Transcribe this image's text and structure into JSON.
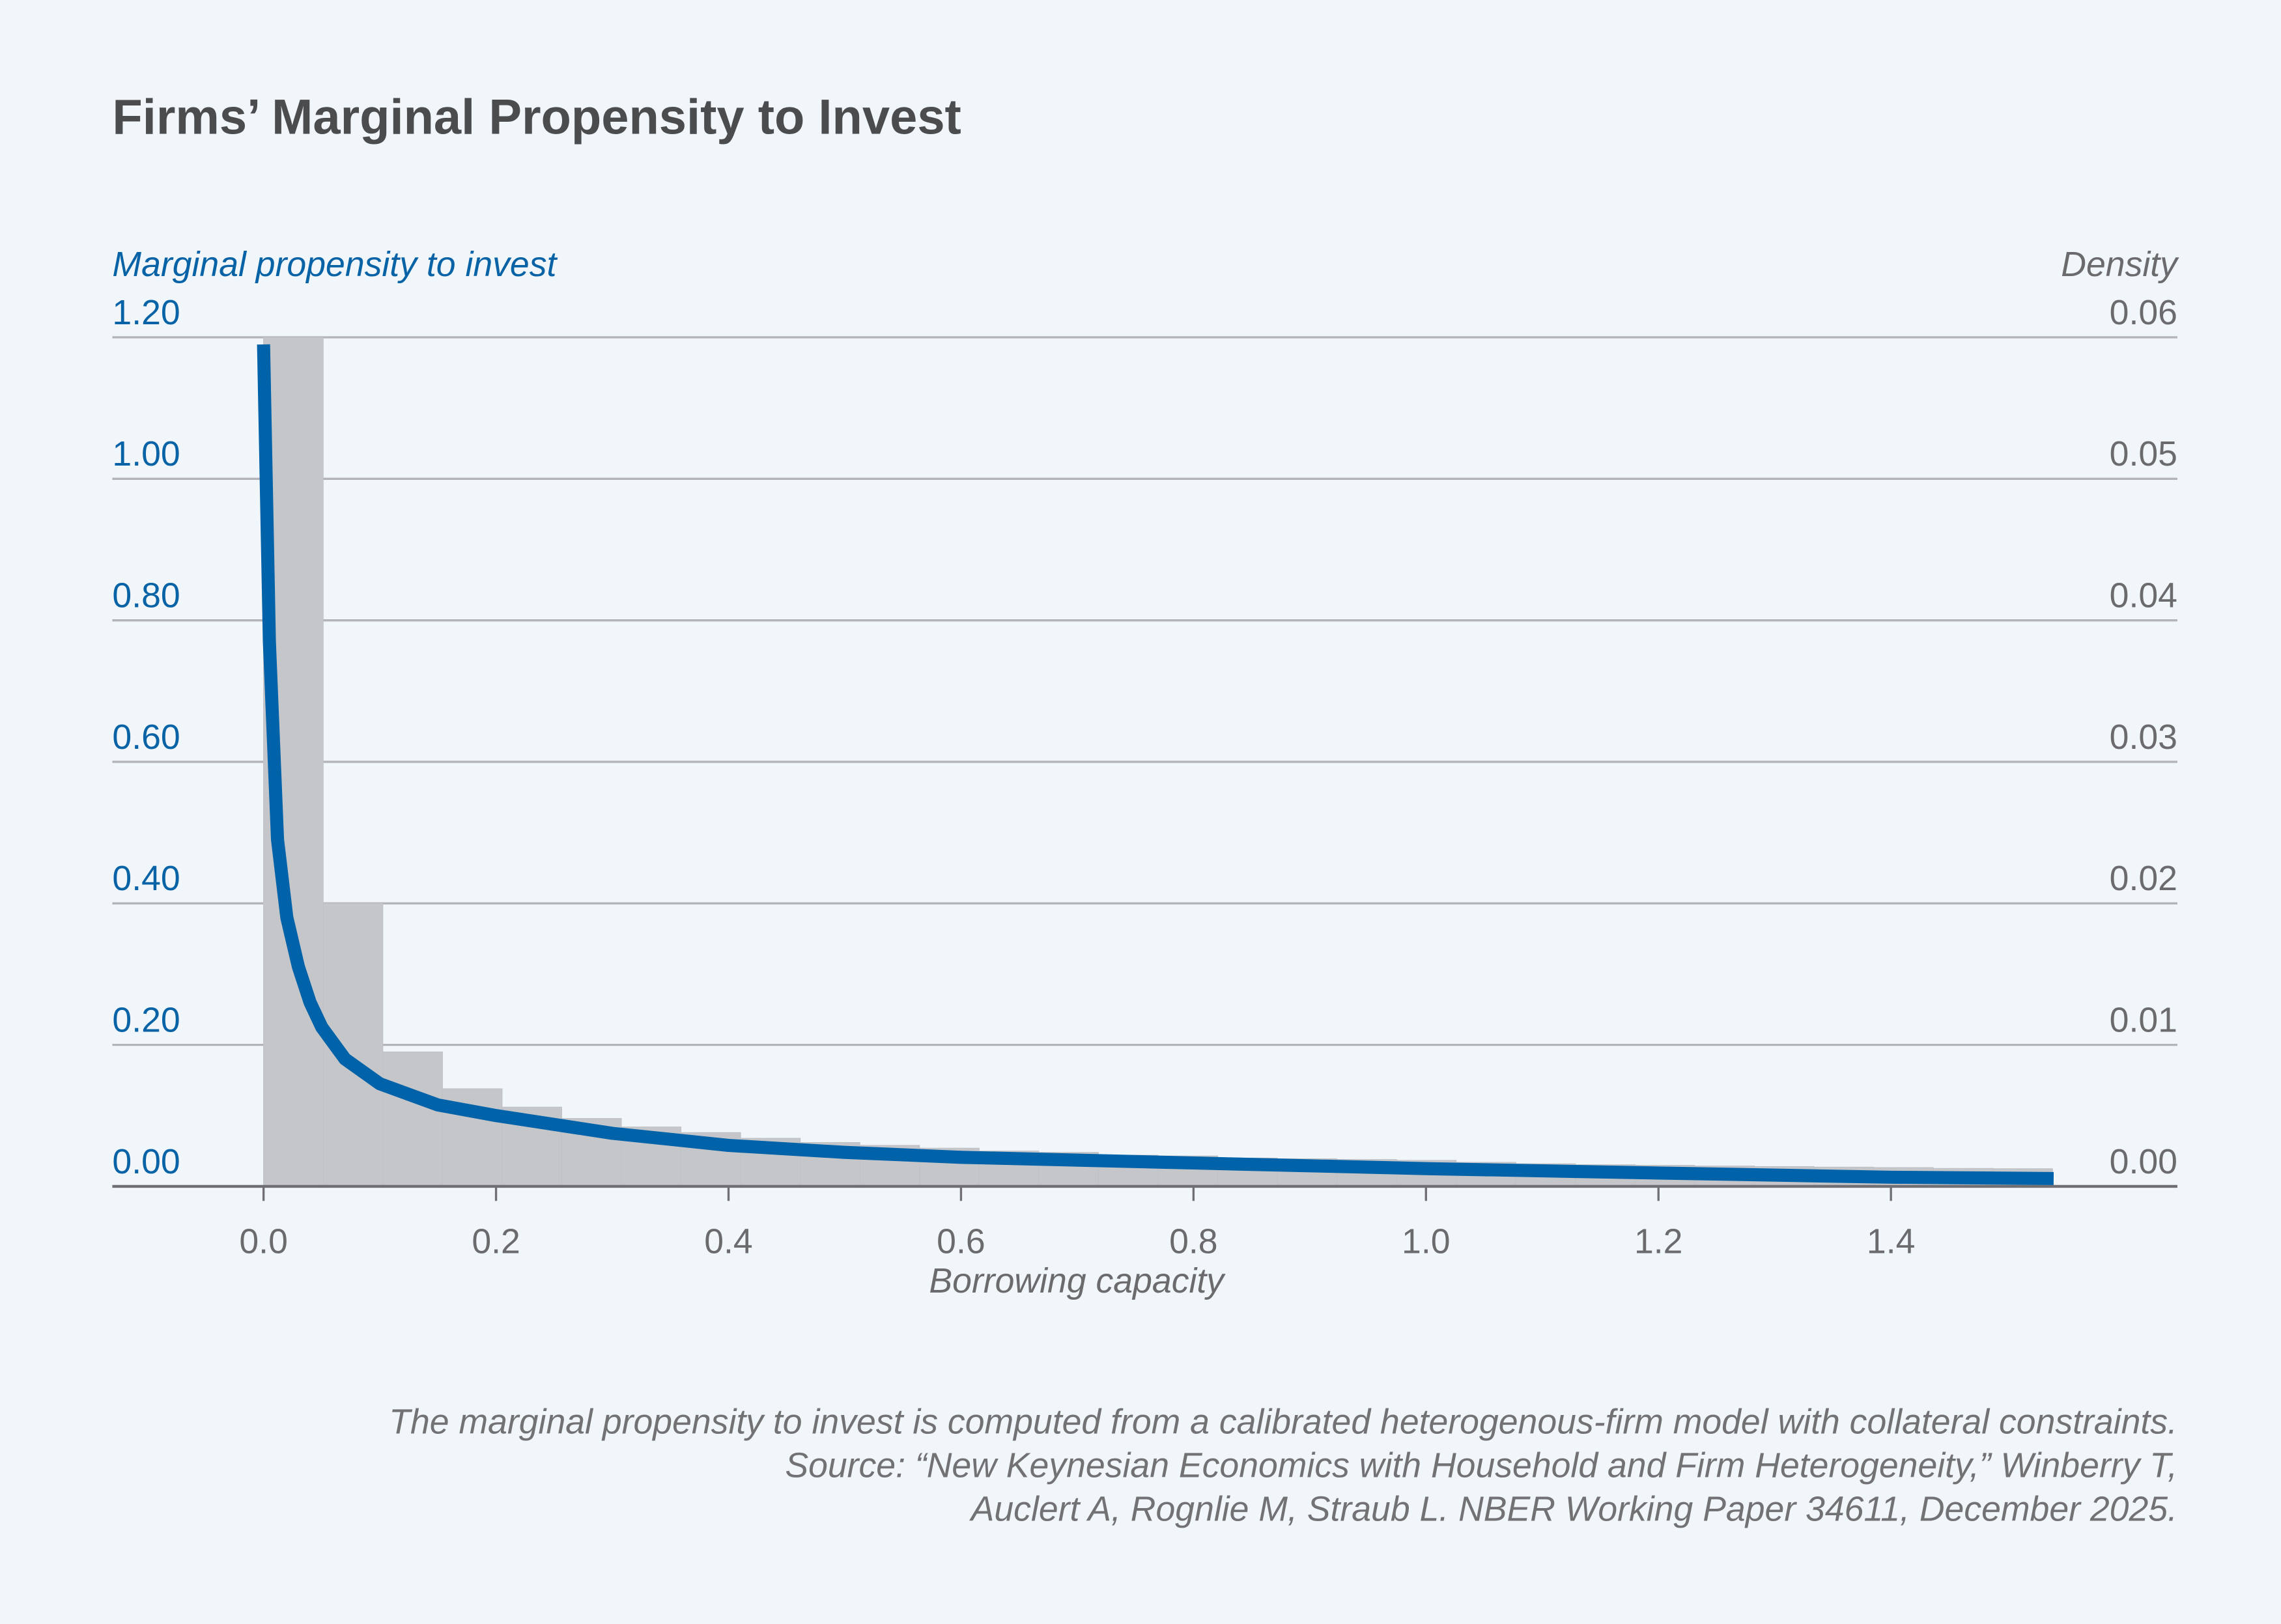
{
  "title": "Firms’ Marginal Propensity to Invest",
  "colors": {
    "background": "#f1f6fa",
    "line": "#0062a8",
    "bars": "#c5c6ca",
    "grid": "#b3b4b8",
    "left_axis_text": "#0863a6"
  },
  "chart_data": [
    {
      "type": "bar+line",
      "title": "Firms’ Marginal Propensity to Invest",
      "xlabel": "Borrowing capacity",
      "ylabel_left": "Marginal propensity to invest",
      "ylabel_right": "Density",
      "xlim": [
        -0.13,
        1.65
      ],
      "ylim_left": [
        0,
        1.2
      ],
      "ylim_right": [
        0,
        0.06
      ],
      "grid": true,
      "x_ticks": [
        "0.0",
        "0.2",
        "0.4",
        "0.6",
        "0.8",
        "1.0",
        "1.2",
        "1.4"
      ],
      "y_ticks_left": [
        "0.00",
        "0.20",
        "0.40",
        "0.60",
        "0.80",
        "1.00",
        "1.20"
      ],
      "y_ticks_right": [
        "0.00",
        "0.01",
        "0.02",
        "0.03",
        "0.04",
        "0.05",
        "0.06"
      ],
      "histogram": {
        "axis": "right",
        "bin_width": 0.0513,
        "bin_start": 0,
        "density": [
          0.06,
          0.02,
          0.0095,
          0.0069,
          0.0056,
          0.0048,
          0.0042,
          0.0038,
          0.0034,
          0.0031,
          0.0029,
          0.0027,
          0.0025,
          0.0024,
          0.0022,
          0.00215,
          0.002,
          0.00195,
          0.0019,
          0.00184,
          0.0017,
          0.0016,
          0.00153,
          0.00149,
          0.00144,
          0.0014,
          0.00136,
          0.00133,
          0.00127,
          0.00125
        ]
      },
      "line": {
        "axis": "left",
        "x": [
          0,
          0.005,
          0.012,
          0.02,
          0.03,
          0.04,
          0.05,
          0.07,
          0.1,
          0.15,
          0.2,
          0.3,
          0.4,
          0.5,
          0.6,
          0.8,
          1.0,
          1.2,
          1.4,
          1.54
        ],
        "y": [
          1.19,
          0.77,
          0.49,
          0.38,
          0.31,
          0.26,
          0.225,
          0.18,
          0.145,
          0.115,
          0.1,
          0.075,
          0.058,
          0.048,
          0.041,
          0.033,
          0.025,
          0.019,
          0.013,
          0.011
        ]
      }
    }
  ],
  "notes": [
    "The marginal propensity to invest is computed from a calibrated heterogenous-firm model with collateral constraints.",
    "Source: “New Keynesian Economics with Household and Firm Heterogeneity,” Winberry T,",
    "Auclert A, Rognlie M, Straub L. NBER Working Paper 34611, December 2025."
  ]
}
